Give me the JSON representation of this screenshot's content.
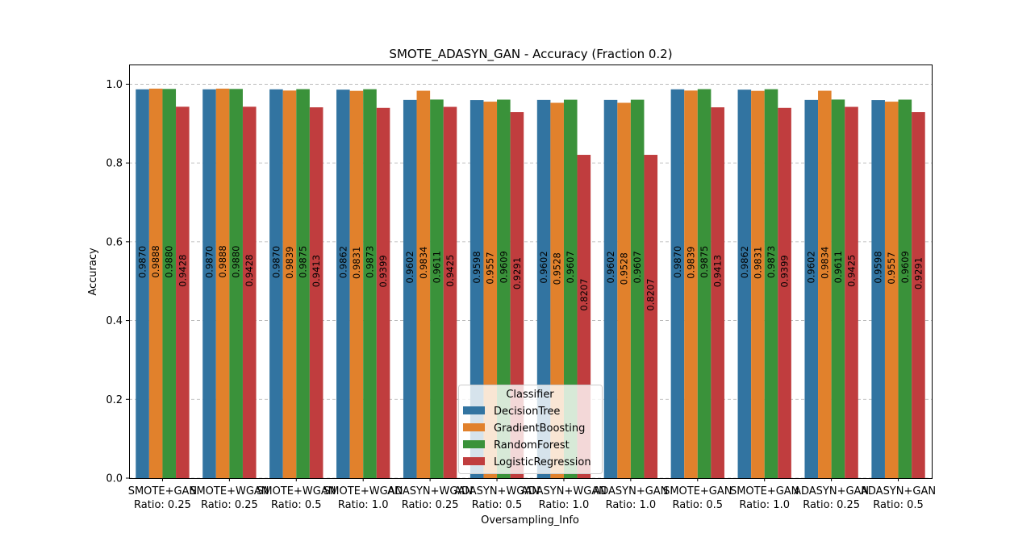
{
  "chart_data": {
    "type": "bar",
    "title": "SMOTE_ADASYN_GAN - Accuracy (Fraction 0.2)",
    "xlabel": "Oversampling_Info",
    "ylabel": "Accuracy",
    "ylim": [
      0,
      1.05
    ],
    "yticks": [
      "0.0",
      "0.2",
      "0.4",
      "0.6",
      "0.8",
      "1.0"
    ],
    "grid": "y-dashed",
    "categories": [
      [
        "SMOTE+GAN",
        "Ratio: 0.25"
      ],
      [
        "SMOTE+WGAN",
        "Ratio: 0.25"
      ],
      [
        "SMOTE+WGAN",
        "Ratio: 0.5"
      ],
      [
        "SMOTE+WGAN",
        "Ratio: 1.0"
      ],
      [
        "ADASYN+WGAN",
        "Ratio: 0.25"
      ],
      [
        "ADASYN+WGAN",
        "Ratio: 0.5"
      ],
      [
        "ADASYN+WGAN",
        "Ratio: 1.0"
      ],
      [
        "ADASYN+GAN",
        "Ratio: 1.0"
      ],
      [
        "SMOTE+GAN",
        "Ratio: 0.5"
      ],
      [
        "SMOTE+GAN",
        "Ratio: 1.0"
      ],
      [
        "ADASYN+GAN",
        "Ratio: 0.25"
      ],
      [
        "ADASYN+GAN",
        "Ratio: 0.5"
      ]
    ],
    "legend": {
      "title": "Classifier",
      "position": "lower center"
    },
    "series": [
      {
        "name": "DecisionTree",
        "color": "#3274a1",
        "values": [
          0.987,
          0.987,
          0.987,
          0.9862,
          0.9602,
          0.9598,
          0.9602,
          0.9602,
          0.987,
          0.9862,
          0.9602,
          0.9598
        ],
        "labels": [
          "0.9870",
          "0.9870",
          "0.9870",
          "0.9862",
          "0.9602",
          "0.9598",
          "0.9602",
          "0.9602",
          "0.9870",
          "0.9862",
          "0.9602",
          "0.9598"
        ]
      },
      {
        "name": "GradientBoosting",
        "color": "#e1812c",
        "values": [
          0.9888,
          0.9888,
          0.9839,
          0.9831,
          0.9834,
          0.9557,
          0.9528,
          0.9528,
          0.9839,
          0.9831,
          0.9834,
          0.9557
        ],
        "labels": [
          "0.9888",
          "0.9888",
          "0.9839",
          "0.9831",
          "0.9834",
          "0.9557",
          "0.9528",
          "0.9528",
          "0.9839",
          "0.9831",
          "0.9834",
          "0.9557"
        ]
      },
      {
        "name": "RandomForest",
        "color": "#3a923a",
        "values": [
          0.988,
          0.988,
          0.9875,
          0.9873,
          0.9611,
          0.9609,
          0.9607,
          0.9607,
          0.9875,
          0.9873,
          0.9611,
          0.9609
        ],
        "labels": [
          "0.9880",
          "0.9880",
          "0.9875",
          "0.9873",
          "0.9611",
          "0.9609",
          "0.9607",
          "0.9607",
          "0.9875",
          "0.9873",
          "0.9611",
          "0.9609"
        ]
      },
      {
        "name": "LogisticRegression",
        "color": "#c03d3e",
        "values": [
          0.9428,
          0.9428,
          0.9413,
          0.9399,
          0.9425,
          0.9291,
          0.8207,
          0.8207,
          0.9413,
          0.9399,
          0.9425,
          0.9291
        ],
        "labels": [
          "0.9428",
          "0.9428",
          "0.9413",
          "0.9399",
          "0.9425",
          "0.9291",
          "0.8207",
          "0.8207",
          "0.9413",
          "0.9399",
          "0.9425",
          "0.9291"
        ]
      }
    ]
  }
}
